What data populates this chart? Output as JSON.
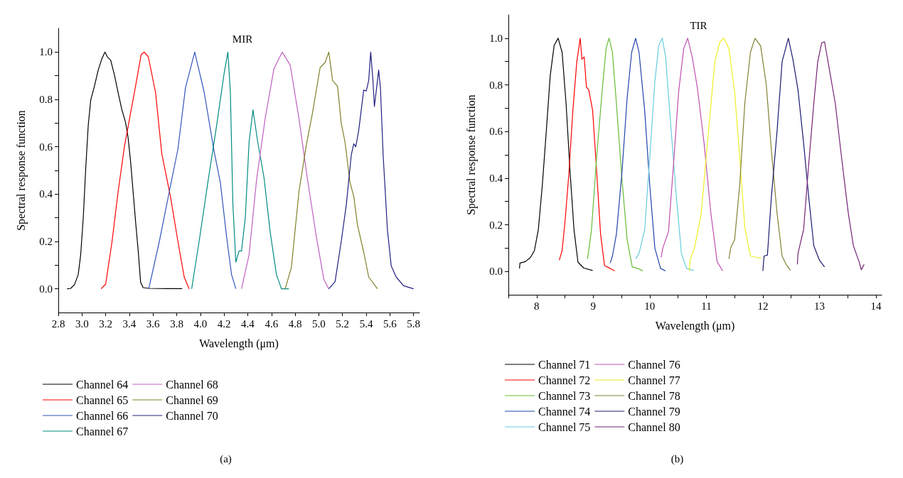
{
  "chart_data": [
    {
      "type": "line",
      "title": "MIR",
      "xlabel": "Wavelength (μm)",
      "ylabel": "Spectral response function",
      "legend": "bottom",
      "annotations": [
        "(a)"
      ],
      "xlim": [
        2.8,
        5.85
      ],
      "ylim": [
        -0.1,
        1.1
      ],
      "xticks": [
        2.8,
        {
          "value": 3,
          "label": "3.0"
        },
        3.2,
        3.4,
        3.6,
        3.8,
        {
          "value": 4,
          "label": "4.0"
        },
        4.2,
        4.4,
        4.6,
        4.8,
        {
          "value": 5,
          "label": "5.0"
        },
        5.2,
        5.4,
        5.6,
        5.8
      ],
      "yticks": [
        {
          "value": 0,
          "label": "0.0"
        },
        {
          "value": 0.1,
          "label": null
        },
        0.2,
        {
          "value": 0.3,
          "label": null
        },
        0.4,
        {
          "value": 0.5,
          "label": null
        },
        0.6,
        {
          "value": 0.7,
          "label": null
        },
        0.8,
        {
          "value": 0.9,
          "label": null
        },
        {
          "value": 1,
          "label": "1.0"
        }
      ],
      "series": [
        {
          "name": "Channel 64",
          "color": "#000000",
          "x": [
            2.874,
            2.905,
            2.937,
            2.968,
            2.989,
            3.011,
            3.032,
            3.053,
            3.074,
            3.105,
            3.137,
            3.168,
            3.194,
            3.215,
            3.242,
            3.274,
            3.305,
            3.337,
            3.368,
            3.389,
            3.411,
            3.432,
            3.453,
            3.474,
            3.495,
            3.516,
            3.568,
            3.716,
            3.846
          ],
          "values": [
            0,
            0.002,
            0.018,
            0.06,
            0.144,
            0.302,
            0.513,
            0.692,
            0.798,
            0.856,
            0.924,
            0.972,
            1.0,
            0.979,
            0.966,
            0.903,
            0.829,
            0.756,
            0.703,
            0.64,
            0.534,
            0.408,
            0.281,
            0.165,
            0.028,
            0.005,
            0.002,
            0.001,
            0.001
          ]
        },
        {
          "name": "Channel 65",
          "color": "#ff0000",
          "x": [
            3.162,
            3.2,
            3.253,
            3.305,
            3.358,
            3.45,
            3.5,
            3.526,
            3.56,
            3.621,
            3.674,
            3.747,
            3.81,
            3.863,
            3.905
          ],
          "values": [
            0,
            0.02,
            0.197,
            0.41,
            0.6,
            0.85,
            0.99,
            1.0,
            0.98,
            0.83,
            0.57,
            0.39,
            0.2,
            0.05,
            0
          ]
        },
        {
          "name": "Channel 66",
          "color": "#3355bb",
          "x": [
            3.564,
            3.653,
            3.737,
            3.81,
            3.874,
            3.952,
            4.032,
            4.116,
            4.168,
            4.221,
            4.263,
            4.299
          ],
          "values": [
            0,
            0.2,
            0.41,
            0.59,
            0.85,
            1.0,
            0.83,
            0.58,
            0.45,
            0.22,
            0.06,
            0
          ]
        },
        {
          "name": "Channel 67",
          "color": "#008b80",
          "x": [
            3.926,
            3.989,
            4.063,
            4.137,
            4.2,
            4.232,
            4.253,
            4.274,
            4.299,
            4.326,
            4.347,
            4.379,
            4.411,
            4.444,
            4.484,
            4.537,
            4.589,
            4.642,
            4.684,
            4.747
          ],
          "values": [
            0,
            0.2,
            0.45,
            0.69,
            0.91,
            1.0,
            0.83,
            0.36,
            0.113,
            0.16,
            0.16,
            0.3,
            0.62,
            0.756,
            0.62,
            0.47,
            0.24,
            0.06,
            0,
            0
          ]
        },
        {
          "name": "Channel 68",
          "color": "#c060c0",
          "x": [
            4.347,
            4.411,
            4.474,
            4.547,
            4.621,
            4.691,
            4.758,
            4.832,
            4.905,
            4.979,
            5.042,
            5.084
          ],
          "values": [
            0,
            0.144,
            0.46,
            0.72,
            0.93,
            1.0,
            0.945,
            0.72,
            0.46,
            0.22,
            0.04,
            0
          ]
        },
        {
          "name": "Channel 69",
          "color": "#808028",
          "x": [
            4.716,
            4.768,
            4.832,
            4.895,
            4.947,
            5.011,
            5.053,
            5.084,
            5.116,
            5.158,
            5.189,
            5.221,
            5.263,
            5.295,
            5.326,
            5.379,
            5.421,
            5.495
          ],
          "values": [
            0,
            0.09,
            0.41,
            0.61,
            0.745,
            0.935,
            0.956,
            1.0,
            0.88,
            0.856,
            0.7,
            0.62,
            0.45,
            0.39,
            0.27,
            0.155,
            0.05,
            0
          ]
        },
        {
          "name": "Channel 70",
          "color": "#202080",
          "x": [
            5.084,
            5.137,
            5.189,
            5.232,
            5.274,
            5.295,
            5.312,
            5.337,
            5.379,
            5.4,
            5.421,
            5.438,
            5.457,
            5.469,
            5.488,
            5.505,
            5.52,
            5.543,
            5.579,
            5.611,
            5.653,
            5.716,
            5.8
          ],
          "values": [
            0,
            0.03,
            0.2,
            0.355,
            0.566,
            0.613,
            0.6,
            0.67,
            0.84,
            0.835,
            0.88,
            1.0,
            0.88,
            0.77,
            0.85,
            0.924,
            0.85,
            0.566,
            0.25,
            0.097,
            0.05,
            0.013,
            0
          ]
        }
      ]
    },
    {
      "type": "line",
      "title": "TIR",
      "xlabel": "Wavelength (μm)",
      "ylabel": "Spectral response function",
      "legend": "bottom",
      "annotations": [
        "(b)"
      ],
      "xlim": [
        7.5,
        14.1
      ],
      "ylim": [
        -0.1,
        1.1
      ],
      "xticks": [
        {
          "value": 7.5,
          "label": null
        },
        8,
        {
          "value": 8.5,
          "label": null
        },
        9,
        {
          "value": 9.5,
          "label": null
        },
        10,
        {
          "value": 10.5,
          "label": null
        },
        11,
        {
          "value": 11.5,
          "label": null
        },
        12,
        {
          "value": 12.5,
          "label": null
        },
        13,
        {
          "value": 13.5,
          "label": null
        },
        14
      ],
      "yticks": [
        {
          "value": 0,
          "label": "0.0"
        },
        {
          "value": 0.1,
          "label": null
        },
        0.2,
        {
          "value": 0.3,
          "label": null
        },
        0.4,
        {
          "value": 0.5,
          "label": null
        },
        0.6,
        {
          "value": 0.7,
          "label": null
        },
        0.8,
        {
          "value": 0.9,
          "label": null
        },
        {
          "value": 1,
          "label": "1.0"
        }
      ],
      "series": [
        {
          "name": "Channel 71",
          "color": "#000000",
          "x": [
            7.696,
            7.705,
            7.8,
            7.89,
            7.96,
            8.03,
            8.1,
            8.17,
            8.24,
            8.31,
            8.38,
            8.45,
            8.52,
            8.59,
            8.66,
            8.73,
            8.83,
            8.99
          ],
          "values": [
            0.013,
            0.036,
            0.042,
            0.06,
            0.089,
            0.18,
            0.37,
            0.6,
            0.84,
            0.97,
            1.0,
            0.94,
            0.72,
            0.43,
            0.18,
            0.04,
            0.015,
            0.004
          ]
        },
        {
          "name": "Channel 72",
          "color": "#ff0000",
          "x": [
            8.4,
            8.45,
            8.5,
            8.57,
            8.64,
            8.71,
            8.77,
            8.8,
            8.84,
            8.88,
            8.92,
            8.99,
            9.06,
            9.13,
            9.2,
            9.3,
            9.38
          ],
          "values": [
            0.048,
            0.09,
            0.21,
            0.42,
            0.69,
            0.9,
            1.0,
            0.91,
            0.92,
            0.79,
            0.78,
            0.69,
            0.43,
            0.16,
            0.025,
            0.013,
            0.002
          ]
        },
        {
          "name": "Channel 73",
          "color": "#66bb33",
          "x": [
            8.9,
            8.97,
            9.06,
            9.16,
            9.23,
            9.28,
            9.34,
            9.41,
            9.51,
            9.6,
            9.69,
            9.79,
            9.88
          ],
          "values": [
            0.054,
            0.18,
            0.49,
            0.78,
            0.96,
            1.0,
            0.94,
            0.72,
            0.39,
            0.136,
            0.019,
            0.013,
            0.002
          ]
        },
        {
          "name": "Channel 74",
          "color": "#2244aa",
          "x": [
            9.3,
            9.34,
            9.41,
            9.51,
            9.6,
            9.68,
            9.75,
            9.81,
            9.91,
            10.0,
            10.09,
            10.19,
            10.28
          ],
          "values": [
            0.036,
            0.066,
            0.16,
            0.43,
            0.745,
            0.94,
            1.0,
            0.94,
            0.69,
            0.37,
            0.1,
            0.013,
            0.002
          ]
        },
        {
          "name": "Channel 75",
          "color": "#66ccdd",
          "x": [
            9.75,
            9.81,
            9.91,
            10.0,
            10.09,
            10.16,
            10.22,
            10.28,
            10.37,
            10.47,
            10.56,
            10.65,
            10.78
          ],
          "values": [
            0.054,
            0.077,
            0.18,
            0.49,
            0.815,
            0.97,
            1.0,
            0.92,
            0.63,
            0.32,
            0.077,
            0.013,
            0.004
          ]
        },
        {
          "name": "Channel 76",
          "color": "#c050b0",
          "x": [
            10.2,
            10.23,
            10.33,
            10.42,
            10.51,
            10.6,
            10.67,
            10.75,
            10.84,
            10.96,
            11.08,
            11.19,
            11.29
          ],
          "values": [
            0.06,
            0.1,
            0.17,
            0.46,
            0.77,
            0.955,
            1.0,
            0.92,
            0.79,
            0.55,
            0.25,
            0.042,
            0.002
          ]
        },
        {
          "name": "Channel 77",
          "color": "#eeee22",
          "x": [
            10.7,
            10.71,
            10.79,
            10.91,
            11.03,
            11.15,
            11.24,
            11.31,
            11.4,
            11.5,
            11.59,
            11.68,
            11.78,
            11.9,
            11.97
          ],
          "values": [
            0.002,
            0.048,
            0.1,
            0.25,
            0.58,
            0.9,
            0.985,
            1.0,
            0.955,
            0.77,
            0.49,
            0.19,
            0.066,
            0.06,
            0.056
          ]
        },
        {
          "name": "Channel 78",
          "color": "#808030",
          "x": [
            11.4,
            11.43,
            11.5,
            11.59,
            11.68,
            11.78,
            11.86,
            11.96,
            12.06,
            12.15,
            12.25,
            12.34,
            12.41,
            12.49
          ],
          "values": [
            0.054,
            0.1,
            0.136,
            0.37,
            0.72,
            0.94,
            1.0,
            0.967,
            0.8,
            0.52,
            0.25,
            0.066,
            0.03,
            0.005
          ]
        },
        {
          "name": "Channel 79",
          "color": "#1a1a70",
          "x": [
            12.0,
            12.02,
            12.08,
            12.15,
            12.25,
            12.34,
            12.45,
            12.53,
            12.62,
            12.72,
            12.81,
            12.9,
            13.0,
            13.09
          ],
          "values": [
            0.002,
            0.066,
            0.07,
            0.32,
            0.6,
            0.9,
            1.0,
            0.91,
            0.78,
            0.55,
            0.32,
            0.11,
            0.048,
            0.019
          ]
        },
        {
          "name": "Channel 80",
          "color": "#772277",
          "x": [
            12.61,
            12.62,
            12.72,
            12.81,
            12.9,
            12.97,
            13.04,
            13.09,
            13.18,
            13.28,
            13.39,
            13.51,
            13.6,
            13.7,
            13.74,
            13.79
          ],
          "values": [
            0.03,
            0.077,
            0.18,
            0.46,
            0.72,
            0.9,
            0.98,
            0.985,
            0.86,
            0.72,
            0.49,
            0.25,
            0.11,
            0.042,
            0.007,
            0.03
          ]
        }
      ]
    }
  ]
}
